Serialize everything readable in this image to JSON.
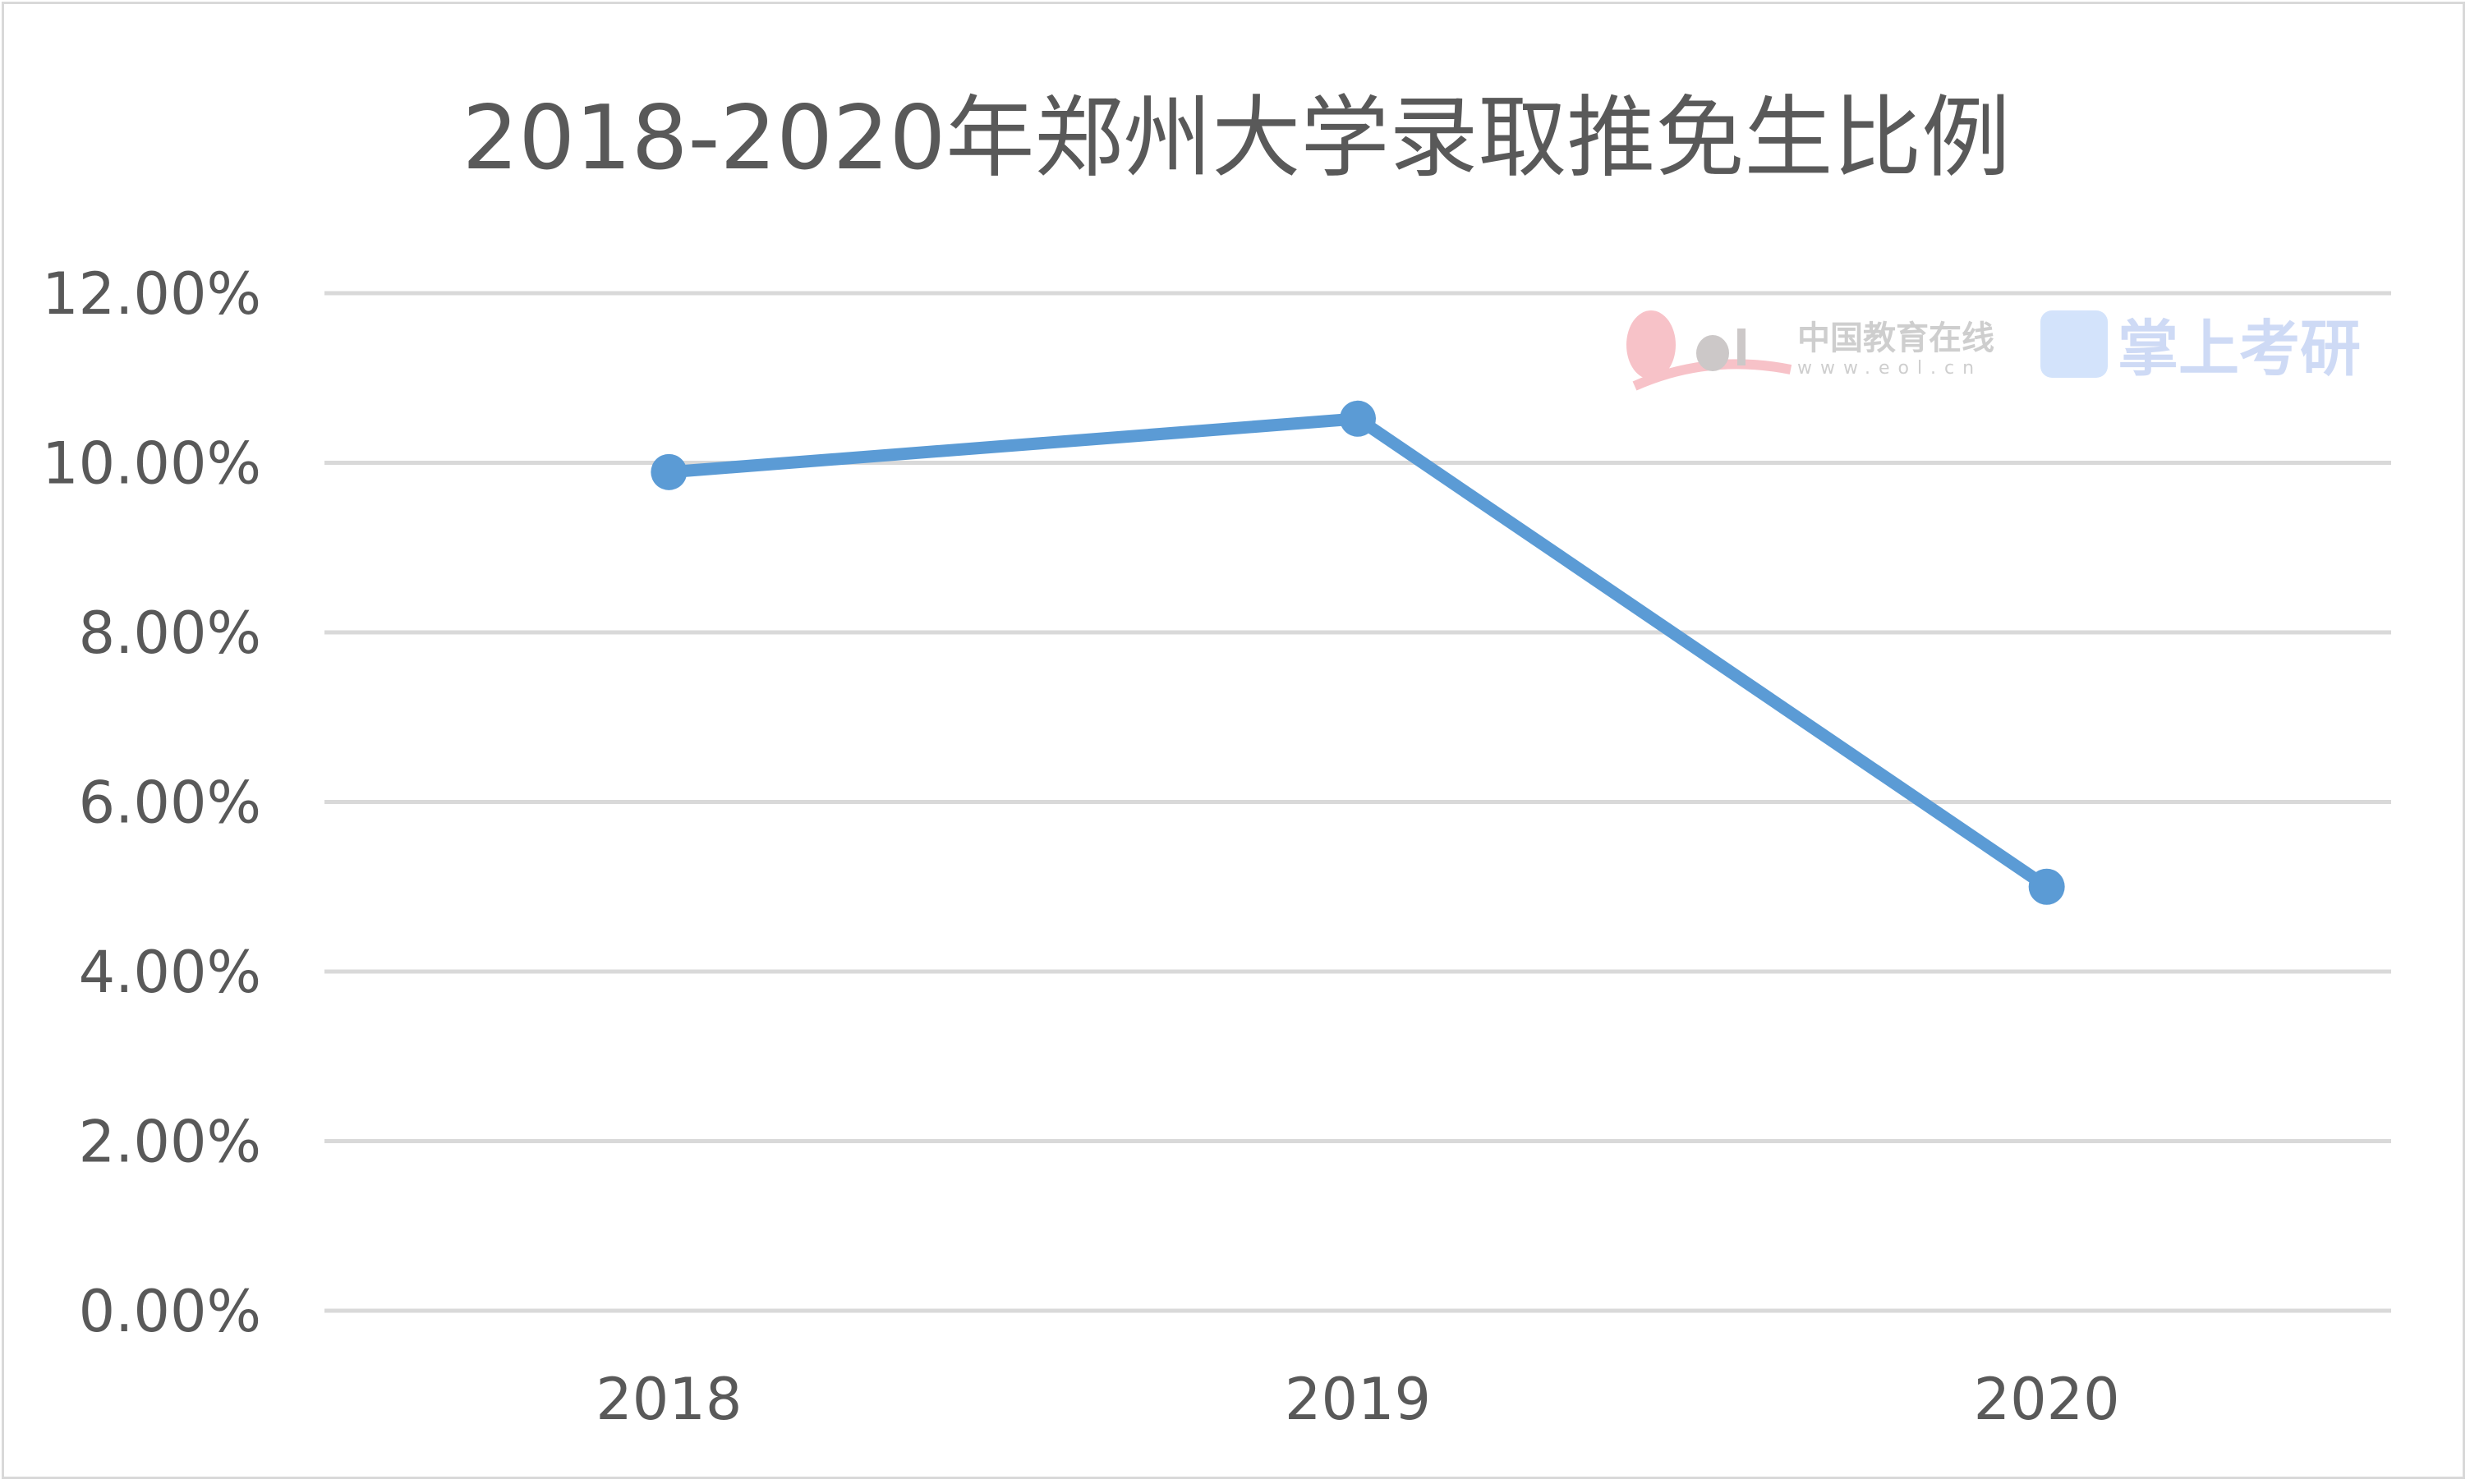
{
  "chart_data": {
    "type": "line",
    "title": "2018-2020年郑州大学录取推免生比例",
    "categories": [
      "2018",
      "2019",
      "2020"
    ],
    "series": [
      {
        "values": [
          9.89,
          10.52,
          5.0
        ],
        "color": "#5b9bd5"
      }
    ],
    "ylim": [
      0,
      12
    ],
    "yticks": [
      "0.00%",
      "2.00%",
      "4.00%",
      "6.00%",
      "8.00%",
      "10.00%",
      "12.00%"
    ],
    "ytick_values": [
      0,
      2,
      4,
      6,
      8,
      10,
      12
    ],
    "grid": true,
    "legend": "none"
  },
  "watermark": {
    "eol_logo": "eol",
    "eol_name": "中国教育在线",
    "eol_url": "www.eol.cn",
    "app_name": "掌上考研"
  }
}
